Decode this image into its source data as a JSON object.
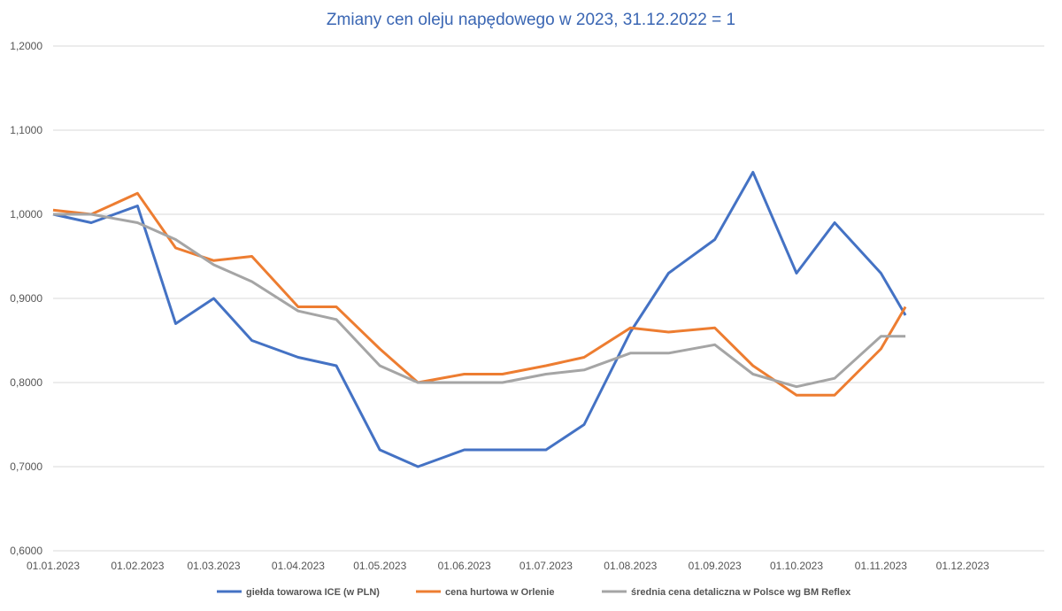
{
  "chart_data": {
    "type": "line",
    "title": "Zmiany cen oleju napędowego w 2023, 31.12.2022 = 1",
    "xlabel": "",
    "ylabel": "",
    "x_dates": [
      "2023-01-01",
      "2023-01-15",
      "2023-02-01",
      "2023-02-15",
      "2023-03-01",
      "2023-03-15",
      "2023-04-01",
      "2023-04-15",
      "2023-05-01",
      "2023-05-15",
      "2023-06-01",
      "2023-06-15",
      "2023-07-01",
      "2023-07-15",
      "2023-08-01",
      "2023-08-15",
      "2023-09-01",
      "2023-09-15",
      "2023-10-01",
      "2023-10-15",
      "2023-11-01",
      "2023-11-10"
    ],
    "x_range": [
      "2023-01-01",
      "2023-12-31"
    ],
    "x_tick_labels": [
      "01.01.2023",
      "01.02.2023",
      "01.03.2023",
      "01.04.2023",
      "01.05.2023",
      "01.06.2023",
      "01.07.2023",
      "01.08.2023",
      "01.09.2023",
      "01.10.2023",
      "01.11.2023",
      "01.12.2023"
    ],
    "ylim": [
      0.6,
      1.2
    ],
    "y_tick_labels": [
      "0,6000",
      "0,7000",
      "0,8000",
      "0,9000",
      "1,0000",
      "1,1000",
      "1,2000"
    ],
    "grid": "horizontal",
    "legend_position": "bottom",
    "series": [
      {
        "name": "giełda towarowa ICE (w PLN)",
        "color": "#4472c4",
        "values": [
          1.0,
          0.99,
          1.01,
          0.87,
          0.9,
          0.85,
          0.83,
          0.82,
          0.72,
          0.7,
          0.72,
          0.72,
          0.72,
          0.75,
          0.86,
          0.93,
          0.97,
          1.05,
          0.93,
          0.99,
          0.93,
          0.88
        ]
      },
      {
        "name": "cena hurtowa w Orlenie",
        "color": "#ed7d31",
        "values": [
          1.005,
          1.0,
          1.025,
          0.96,
          0.945,
          0.95,
          0.89,
          0.89,
          0.84,
          0.8,
          0.81,
          0.81,
          0.82,
          0.83,
          0.865,
          0.86,
          0.865,
          0.82,
          0.785,
          0.785,
          0.84,
          0.89
        ]
      },
      {
        "name": "średnia cena detaliczna w Polsce wg BM Reflex",
        "color": "#a5a5a5",
        "values": [
          1.0,
          1.0,
          0.99,
          0.97,
          0.94,
          0.92,
          0.885,
          0.875,
          0.82,
          0.8,
          0.8,
          0.8,
          0.81,
          0.815,
          0.835,
          0.835,
          0.845,
          0.81,
          0.795,
          0.805,
          0.855,
          0.855
        ]
      }
    ]
  }
}
